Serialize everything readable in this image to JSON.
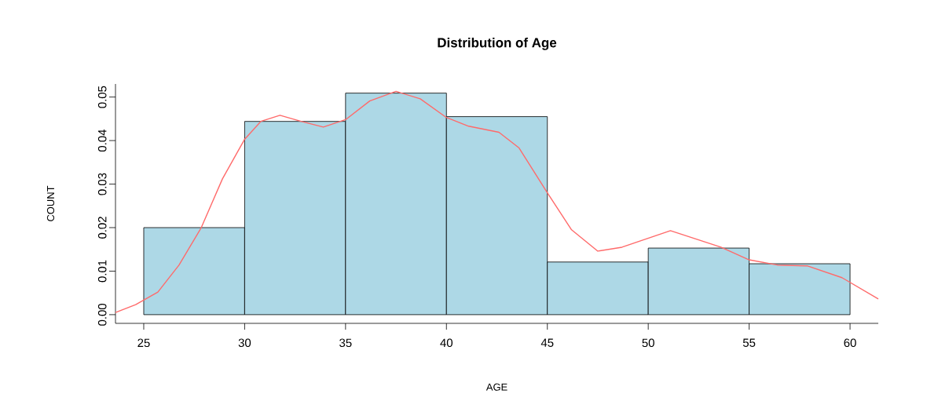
{
  "chart_data": {
    "type": "histogram",
    "title": "Distribution of Age",
    "xlabel": "AGE",
    "ylabel": "COUNT",
    "bins": [
      25,
      30,
      35,
      40,
      45,
      50,
      55,
      60
    ],
    "values": [
      0.02,
      0.0444,
      0.0509,
      0.0455,
      0.0121,
      0.0153,
      0.0117
    ],
    "color": "#add8e6",
    "series": [
      {
        "type": "line",
        "color": "#ff6a6a",
        "x": [
          23.6,
          24.6,
          25.7,
          26.75,
          27.85,
          28.9,
          30.0,
          30.8,
          31.75,
          32.8,
          33.9,
          35.0,
          36.2,
          37.5,
          38.7,
          40.0,
          41.1,
          42.6,
          43.6,
          45.0,
          46.2,
          47.5,
          48.7,
          51.1,
          53.6,
          55.0,
          56.4,
          57.9,
          59.6,
          61.4
        ],
        "values": [
          0.0005,
          0.0023,
          0.0052,
          0.0114,
          0.02,
          0.0312,
          0.0403,
          0.0444,
          0.0458,
          0.0444,
          0.0431,
          0.0448,
          0.0491,
          0.0513,
          0.0496,
          0.0453,
          0.0433,
          0.0419,
          0.0383,
          0.028,
          0.0195,
          0.0146,
          0.0155,
          0.0193,
          0.0155,
          0.0126,
          0.0114,
          0.0112,
          0.0085,
          0.0036
        ]
      }
    ],
    "xlim": [
      23.6,
      61.4
    ],
    "ylim": [
      -0.002,
      0.053
    ],
    "xticks": [
      25,
      30,
      35,
      40,
      45,
      50,
      55,
      60
    ],
    "yticks": [
      {
        "value": 0,
        "label": "0.00"
      },
      {
        "value": 0.01,
        "label": "0.01"
      },
      {
        "value": 0.02,
        "label": "0.02"
      },
      {
        "value": 0.03,
        "label": "0.03"
      },
      {
        "value": 0.04,
        "label": "0.04"
      },
      {
        "value": 0.05,
        "label": "0.05"
      }
    ]
  }
}
